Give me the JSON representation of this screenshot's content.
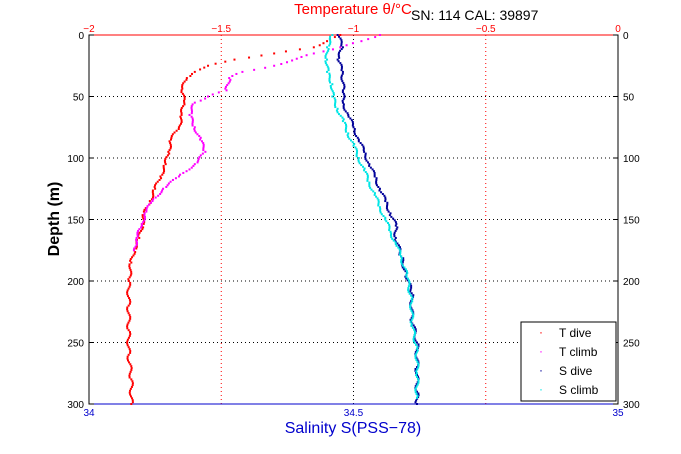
{
  "chart_data": {
    "type": "scatter",
    "header": "SN: 114  CAL: 39897",
    "top_axis": {
      "label": "Temperature θ/°C",
      "range": [
        -2,
        0
      ],
      "ticks": [
        -2,
        -1.5,
        -1,
        -0.5,
        0
      ],
      "tick_labels": [
        "−2",
        "−1.5",
        "−1",
        "−0.5",
        "0"
      ],
      "color": "#ff0000"
    },
    "bottom_axis": {
      "label": "Salinity S(PSS−78)",
      "range": [
        34,
        35
      ],
      "ticks": [
        34,
        34.5,
        35
      ],
      "tick_labels": [
        "34",
        "34.5",
        "35"
      ],
      "color": "#0000cc"
    },
    "y_axis": {
      "label": "Depth (m)",
      "range": [
        0,
        300
      ],
      "reversed": true,
      "ticks": [
        0,
        50,
        100,
        150,
        200,
        250,
        300
      ],
      "tick_labels": [
        "0",
        "50",
        "100",
        "150",
        "200",
        "250",
        "300"
      ]
    },
    "grid": true,
    "legend_position": "bottom-right",
    "series": [
      {
        "name": "T dive",
        "axis": "top",
        "color": "#ff0000",
        "points": [
          [
            -1.05,
            0
          ],
          [
            -1.1,
            5
          ],
          [
            -1.15,
            10
          ],
          [
            -1.3,
            15
          ],
          [
            -1.45,
            20
          ],
          [
            -1.55,
            25
          ],
          [
            -1.58,
            28
          ],
          [
            -1.6,
            30
          ],
          [
            -1.63,
            35
          ],
          [
            -1.65,
            45
          ],
          [
            -1.64,
            55
          ],
          [
            -1.65,
            65
          ],
          [
            -1.66,
            75
          ],
          [
            -1.69,
            85
          ],
          [
            -1.7,
            95
          ],
          [
            -1.71,
            105
          ],
          [
            -1.73,
            115
          ],
          [
            -1.75,
            125
          ],
          [
            -1.77,
            135
          ],
          [
            -1.79,
            145
          ],
          [
            -1.8,
            155
          ],
          [
            -1.81,
            165
          ],
          [
            -1.83,
            175
          ],
          [
            -1.84,
            185
          ],
          [
            -1.85,
            200
          ],
          [
            -1.85,
            220
          ],
          [
            -1.85,
            240
          ],
          [
            -1.85,
            260
          ],
          [
            -1.84,
            280
          ],
          [
            -1.84,
            300
          ]
        ]
      },
      {
        "name": "T climb",
        "axis": "top",
        "color": "#ff00ff",
        "points": [
          [
            -0.9,
            0
          ],
          [
            -0.97,
            5
          ],
          [
            -1.05,
            10
          ],
          [
            -1.15,
            15
          ],
          [
            -1.3,
            25
          ],
          [
            -1.42,
            30
          ],
          [
            -1.47,
            35
          ],
          [
            -1.48,
            45
          ],
          [
            -1.55,
            50
          ],
          [
            -1.6,
            55
          ],
          [
            -1.62,
            65
          ],
          [
            -1.6,
            75
          ],
          [
            -1.58,
            85
          ],
          [
            -1.56,
            95
          ],
          [
            -1.6,
            105
          ],
          [
            -1.66,
            115
          ],
          [
            -1.72,
            125
          ],
          [
            -1.76,
            135
          ],
          [
            -1.79,
            145
          ],
          [
            -1.8,
            155
          ],
          [
            -1.82,
            165
          ],
          [
            -1.83,
            175
          ]
        ]
      },
      {
        "name": "S dive",
        "axis": "bottom",
        "color": "#000099",
        "points": [
          [
            34.47,
            0
          ],
          [
            34.48,
            10
          ],
          [
            34.47,
            20
          ],
          [
            34.48,
            30
          ],
          [
            34.48,
            45
          ],
          [
            34.48,
            55
          ],
          [
            34.49,
            65
          ],
          [
            34.5,
            75
          ],
          [
            34.51,
            85
          ],
          [
            34.52,
            95
          ],
          [
            34.53,
            105
          ],
          [
            34.54,
            115
          ],
          [
            34.55,
            125
          ],
          [
            34.56,
            135
          ],
          [
            34.57,
            145
          ],
          [
            34.58,
            155
          ],
          [
            34.58,
            165
          ],
          [
            34.59,
            180
          ],
          [
            34.6,
            195
          ],
          [
            34.61,
            210
          ],
          [
            34.61,
            230
          ],
          [
            34.62,
            250
          ],
          [
            34.62,
            270
          ],
          [
            34.62,
            290
          ],
          [
            34.62,
            300
          ]
        ]
      },
      {
        "name": "S climb",
        "axis": "bottom",
        "color": "#00e5e5",
        "points": [
          [
            34.46,
            0
          ],
          [
            34.45,
            10
          ],
          [
            34.45,
            20
          ],
          [
            34.45,
            30
          ],
          [
            34.46,
            40
          ],
          [
            34.46,
            50
          ],
          [
            34.47,
            60
          ],
          [
            34.48,
            70
          ],
          [
            34.49,
            80
          ],
          [
            34.5,
            90
          ],
          [
            34.51,
            100
          ],
          [
            34.52,
            110
          ],
          [
            34.53,
            120
          ],
          [
            34.54,
            130
          ],
          [
            34.55,
            140
          ],
          [
            34.56,
            150
          ],
          [
            34.57,
            160
          ],
          [
            34.58,
            170
          ],
          [
            34.59,
            180
          ],
          [
            34.6,
            195
          ],
          [
            34.61,
            215
          ],
          [
            34.61,
            235
          ],
          [
            34.62,
            255
          ],
          [
            34.62,
            275
          ],
          [
            34.62,
            295
          ]
        ]
      }
    ]
  }
}
